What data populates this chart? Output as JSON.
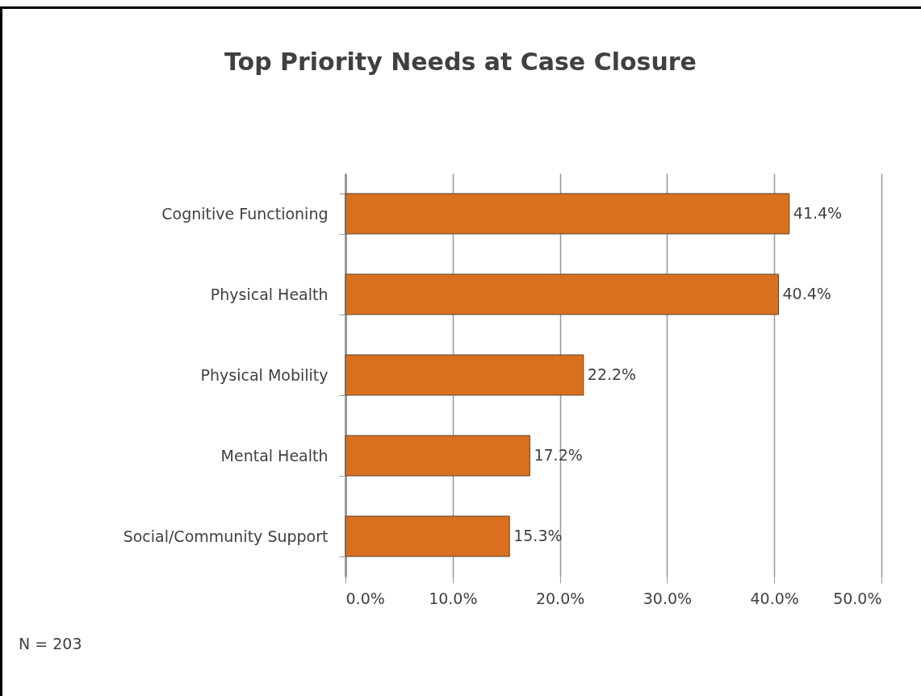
{
  "chart_data": {
    "type": "bar",
    "orientation": "horizontal",
    "title": "Top Priority Needs at Case Closure",
    "categories": [
      "Cognitive Functioning",
      "Physical Health",
      "Physical Mobility",
      "Mental Health",
      "Social/Community Support"
    ],
    "values": [
      41.4,
      40.4,
      22.2,
      17.2,
      15.3
    ],
    "value_labels": [
      "41.4%",
      "40.4%",
      "22.2%",
      "17.2%",
      "15.3%"
    ],
    "color": "#d9701e",
    "xlim": [
      0,
      50
    ],
    "xticks": [
      {
        "value": 0,
        "label": "0.0%"
      },
      {
        "value": 10,
        "label": "10.0%"
      },
      {
        "value": 20,
        "label": "20.0%"
      },
      {
        "value": 30,
        "label": "30.0%"
      },
      {
        "value": 40,
        "label": "40.0%"
      },
      {
        "value": 50,
        "label": "50.0%"
      }
    ],
    "grid": "x",
    "annotations": [
      "N = 203"
    ]
  }
}
